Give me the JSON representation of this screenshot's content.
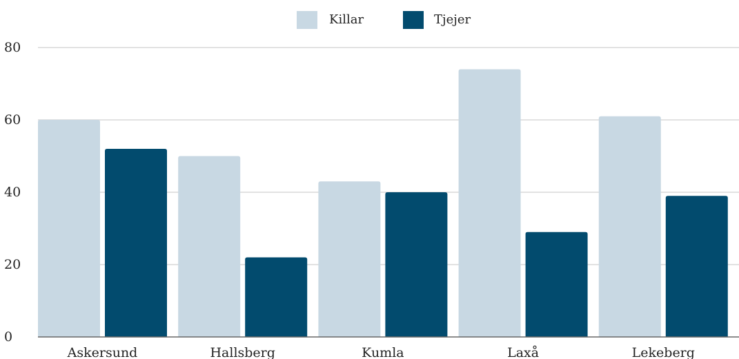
{
  "chart_data": {
    "type": "bar",
    "categories": [
      "Askersund",
      "Hallsberg",
      "Kumla",
      "Laxå",
      "Lekeberg"
    ],
    "series": [
      {
        "name": "Killar",
        "values": [
          60,
          50,
          43,
          74,
          61
        ],
        "color": "#c8d8e3"
      },
      {
        "name": "Tjejer",
        "values": [
          52,
          22,
          40,
          29,
          39
        ],
        "color": "#024b6e"
      }
    ],
    "yticks": [
      0,
      20,
      40,
      60,
      80
    ],
    "ylim": [
      0,
      80
    ],
    "grid": true,
    "legend_position": "top-center",
    "title": "",
    "xlabel": "",
    "ylabel": ""
  }
}
